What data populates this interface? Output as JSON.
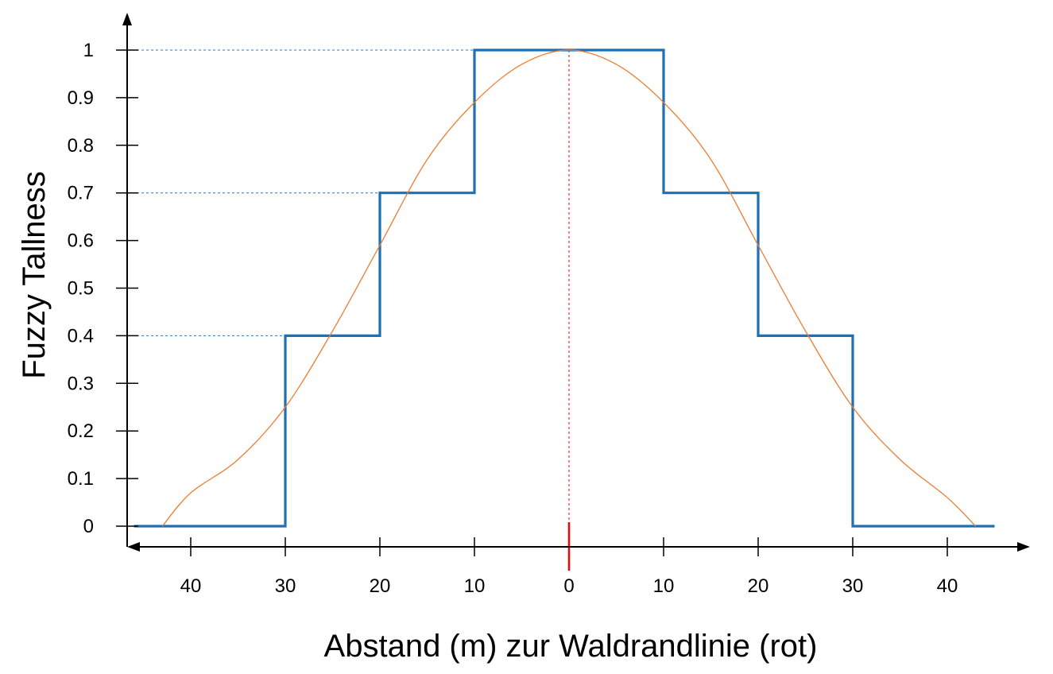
{
  "chart_data": {
    "type": "line",
    "xlabel": "Abstand (m) zur Waldrandlinie (rot)",
    "ylabel": "Fuzzy Tallness",
    "ylim": [
      0,
      1
    ],
    "xlim": [
      -47,
      47
    ],
    "y_ticks": [
      "0",
      "0.1",
      "0.2",
      "0.3",
      "0.4",
      "0.5",
      "0.6",
      "0.7",
      "0.8",
      "0.9",
      "1"
    ],
    "x_ticks": [
      {
        "value": -40,
        "label": "40"
      },
      {
        "value": -30,
        "label": "30"
      },
      {
        "value": -20,
        "label": "20"
      },
      {
        "value": -10,
        "label": "10"
      },
      {
        "value": 0,
        "label": "0"
      },
      {
        "value": 10,
        "label": "10"
      },
      {
        "value": 20,
        "label": "20"
      },
      {
        "value": 30,
        "label": "30"
      },
      {
        "value": 40,
        "label": "40"
      }
    ],
    "grid": false,
    "reference_lines": {
      "horizontal_levels": [
        0.4,
        0.7,
        1.0
      ],
      "vertical_at_x": 0,
      "vertical_color": "#FF0000"
    },
    "series": [
      {
        "style": "step",
        "color": "#1F6FB5",
        "x": [
          -46,
          -30,
          -30,
          -20,
          -20,
          -10,
          -10,
          10,
          10,
          20,
          20,
          30,
          30,
          45
        ],
        "y": [
          0,
          0,
          0.4,
          0.4,
          0.7,
          0.7,
          1.0,
          1.0,
          0.7,
          0.7,
          0.4,
          0.4,
          0,
          0
        ]
      },
      {
        "style": "smooth",
        "color": "#ED7D31",
        "x": [
          -43,
          -40,
          -35,
          -30,
          -25,
          -20,
          -15,
          -10,
          -5,
          0,
          5,
          10,
          15,
          20,
          25,
          30,
          35,
          40,
          43
        ],
        "y": [
          0,
          0.07,
          0.14,
          0.25,
          0.41,
          0.59,
          0.77,
          0.89,
          0.97,
          1.0,
          0.97,
          0.89,
          0.77,
          0.59,
          0.41,
          0.25,
          0.14,
          0.06,
          0
        ]
      }
    ],
    "colors": {
      "axis": "#000000",
      "level_guides": "#2E75B6",
      "center_line": "#FF0000"
    }
  }
}
